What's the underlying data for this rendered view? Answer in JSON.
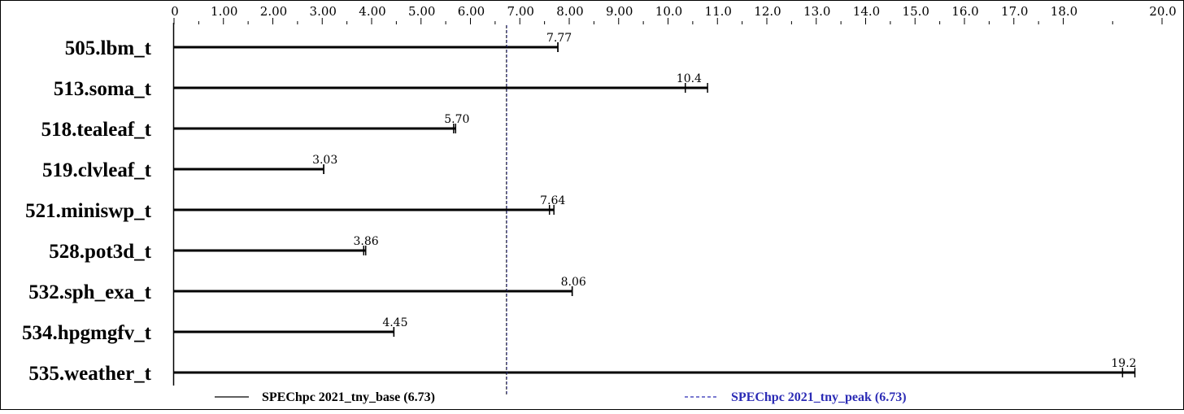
{
  "chart_data": {
    "type": "bar",
    "orientation": "horizontal",
    "categories": [
      "505.lbm_t",
      "513.soma_t",
      "518.tealeaf_t",
      "519.clvleaf_t",
      "521.miniswp_t",
      "528.pot3d_t",
      "532.sph_exa_t",
      "534.hpgmgfv_t",
      "535.weather_t"
    ],
    "series": [
      {
        "name": "SPEChpc 2021_tny_base (6.73)",
        "values": [
          7.77,
          10.4,
          5.7,
          3.03,
          7.64,
          3.86,
          8.06,
          4.45,
          19.2
        ],
        "color": "#000000",
        "line_style": "solid"
      },
      {
        "name": "SPEChpc 2021_tny_peak (6.73)",
        "values": [
          7.77,
          10.4,
          5.7,
          3.03,
          7.64,
          3.86,
          8.06,
          4.45,
          19.2
        ],
        "color": "#2b2bb5",
        "line_style": "dashed"
      }
    ],
    "value_labels": [
      "7.77",
      "10.4",
      "5.70",
      "3.03",
      "7.64",
      "3.86",
      "8.06",
      "4.45",
      "19.2"
    ],
    "bar_ranges": [
      [
        7.77,
        7.77
      ],
      [
        10.35,
        10.8
      ],
      [
        5.66,
        5.7
      ],
      [
        3.03,
        3.03
      ],
      [
        7.6,
        7.69
      ],
      [
        3.84,
        3.88
      ],
      [
        8.06,
        8.06
      ],
      [
        4.45,
        4.45
      ],
      [
        19.2,
        19.45
      ]
    ],
    "x_ticks": [
      0,
      1,
      2,
      3,
      4,
      5,
      6,
      7,
      8,
      9,
      10,
      11,
      12,
      13,
      14,
      15,
      16,
      17,
      18,
      20
    ],
    "x_tick_labels": [
      "0",
      "1.00",
      "2.00",
      "3.00",
      "4.00",
      "5.00",
      "6.00",
      "7.00",
      "8.00",
      "9.00",
      "10.0",
      "11.0",
      "12.0",
      "13.0",
      "14.0",
      "15.0",
      "16.0",
      "17.0",
      "18.0",
      "20.0"
    ],
    "xlim": [
      0,
      20.0
    ],
    "reference_line": 6.73,
    "legend_placement": "bottom",
    "title": "",
    "xlabel": "",
    "ylabel": ""
  }
}
